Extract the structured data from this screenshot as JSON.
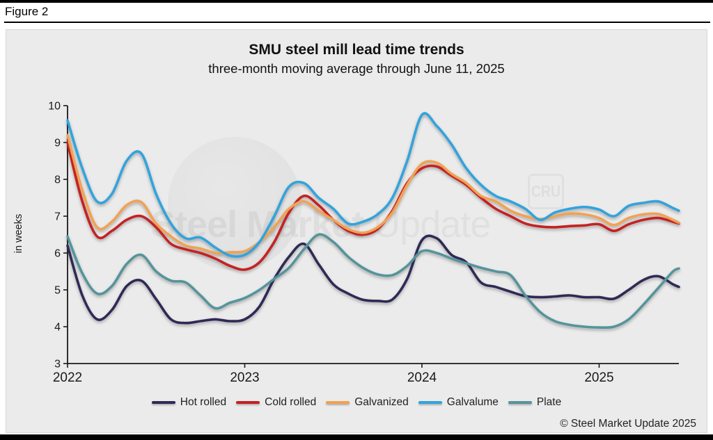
{
  "figure_label": "Figure 2",
  "title": "SMU steel mill lead time trends",
  "subtitle": "three-month moving average through June 11, 2025",
  "ylabel": "in weeks",
  "footer": "© Steel Market Update 2025",
  "watermark": {
    "bold_text": "Steel Market",
    "light_text": " Update",
    "cru_text": "CRU"
  },
  "chart_data": {
    "type": "line",
    "title": "SMU steel mill lead time trends",
    "subtitle": "three-month moving average through June 11, 2025",
    "xlabel": "",
    "ylabel": "in weeks",
    "xlim": [
      2022,
      2025.45
    ],
    "ylim": [
      3,
      10
    ],
    "yticks": [
      3,
      4,
      5,
      6,
      7,
      8,
      9,
      10
    ],
    "xticks": [
      2022,
      2023,
      2024,
      2025
    ],
    "grid": false,
    "legend_position": "bottom",
    "x_start_year": 2022,
    "x_step": "monthly, final point = June 11, 2025",
    "series": [
      {
        "name": "Hot rolled",
        "color": "#2e2a57",
        "values": [
          6.2,
          4.85,
          4.2,
          4.45,
          5.1,
          5.25,
          4.75,
          4.2,
          4.1,
          4.15,
          4.2,
          4.15,
          4.2,
          4.55,
          5.3,
          5.9,
          6.25,
          5.7,
          5.15,
          4.9,
          4.73,
          4.7,
          4.74,
          5.3,
          6.35,
          6.4,
          5.95,
          5.75,
          5.2,
          5.08,
          4.95,
          4.83,
          4.8,
          4.82,
          4.85,
          4.8,
          4.8,
          4.76,
          5.0,
          5.27,
          5.37,
          5.15,
          5.08
        ]
      },
      {
        "name": "Cold rolled",
        "color": "#c42024",
        "values": [
          9.0,
          7.4,
          6.45,
          6.6,
          6.9,
          7.0,
          6.7,
          6.25,
          6.1,
          6.0,
          5.85,
          5.65,
          5.55,
          5.75,
          6.3,
          7.1,
          7.55,
          7.3,
          6.9,
          6.6,
          6.5,
          6.65,
          7.15,
          7.9,
          8.3,
          8.35,
          8.1,
          7.85,
          7.5,
          7.2,
          7.0,
          6.8,
          6.72,
          6.7,
          6.73,
          6.75,
          6.78,
          6.6,
          6.78,
          6.9,
          6.95,
          6.85,
          6.8
        ]
      },
      {
        "name": "Galvanized",
        "color": "#f0a252",
        "values": [
          9.2,
          7.7,
          6.7,
          6.85,
          7.3,
          7.38,
          6.8,
          6.45,
          6.2,
          6.12,
          6.0,
          6.02,
          6.05,
          6.3,
          6.7,
          7.2,
          7.4,
          7.15,
          6.9,
          6.65,
          6.55,
          6.7,
          7.1,
          7.85,
          8.42,
          8.45,
          8.15,
          7.9,
          7.55,
          7.4,
          7.15,
          7.0,
          6.92,
          7.0,
          7.07,
          7.05,
          6.95,
          6.76,
          6.95,
          7.05,
          7.06,
          6.9,
          6.82
        ]
      },
      {
        "name": "Galvalume",
        "color": "#32a3dc",
        "values": [
          9.6,
          8.3,
          7.4,
          7.6,
          8.5,
          8.7,
          7.6,
          6.8,
          6.4,
          6.42,
          6.15,
          5.93,
          5.95,
          6.3,
          7.0,
          7.8,
          7.9,
          7.5,
          7.2,
          6.8,
          6.85,
          7.05,
          7.5,
          8.5,
          9.75,
          9.45,
          8.95,
          8.3,
          7.85,
          7.55,
          7.4,
          7.2,
          6.9,
          7.1,
          7.2,
          7.25,
          7.18,
          7.0,
          7.28,
          7.36,
          7.4,
          7.22,
          7.15
        ]
      },
      {
        "name": "Plate",
        "color": "#55949b",
        "values": [
          6.45,
          5.45,
          4.9,
          5.1,
          5.7,
          5.95,
          5.5,
          5.25,
          5.2,
          4.85,
          4.5,
          4.65,
          4.78,
          5.0,
          5.3,
          5.6,
          6.1,
          6.5,
          6.3,
          5.9,
          5.6,
          5.42,
          5.4,
          5.65,
          6.05,
          6.0,
          5.85,
          5.72,
          5.6,
          5.5,
          5.4,
          4.85,
          4.4,
          4.15,
          4.05,
          4.0,
          3.98,
          4.0,
          4.2,
          4.6,
          5.05,
          5.5,
          5.58
        ]
      }
    ]
  }
}
